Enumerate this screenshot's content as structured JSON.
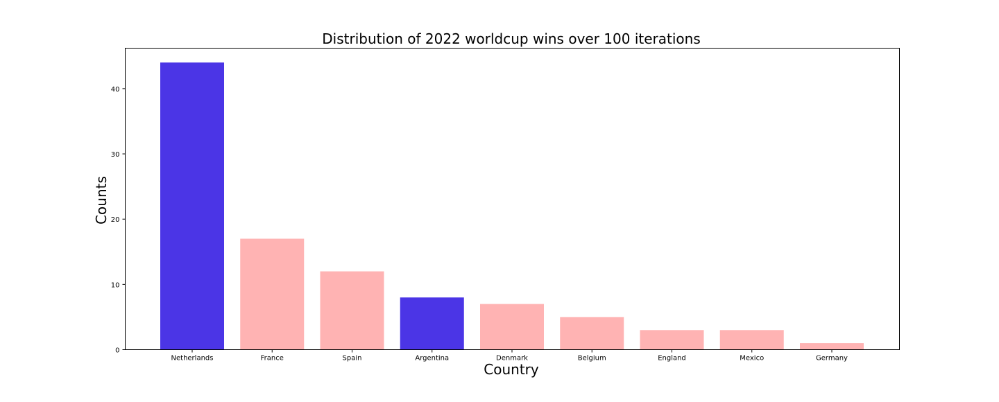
{
  "chart_data": {
    "type": "bar",
    "title": "Distribution of 2022 worldcup wins over 100 iterations",
    "xlabel": "Country",
    "ylabel": "Counts",
    "categories": [
      "Netherlands",
      "France",
      "Spain",
      "Argentina",
      "Denmark",
      "Belgium",
      "England",
      "Mexico",
      "Germany"
    ],
    "values": [
      44,
      17,
      12,
      8,
      7,
      5,
      3,
      3,
      1
    ],
    "highlighted": [
      "Netherlands",
      "Argentina"
    ],
    "colors": {
      "highlight": "#4b35e6",
      "default": "#ffb3b3"
    },
    "ylim": [
      0,
      46.2
    ],
    "yticks": [
      0,
      10,
      20,
      30,
      40
    ],
    "grid": false,
    "legend": "none"
  }
}
